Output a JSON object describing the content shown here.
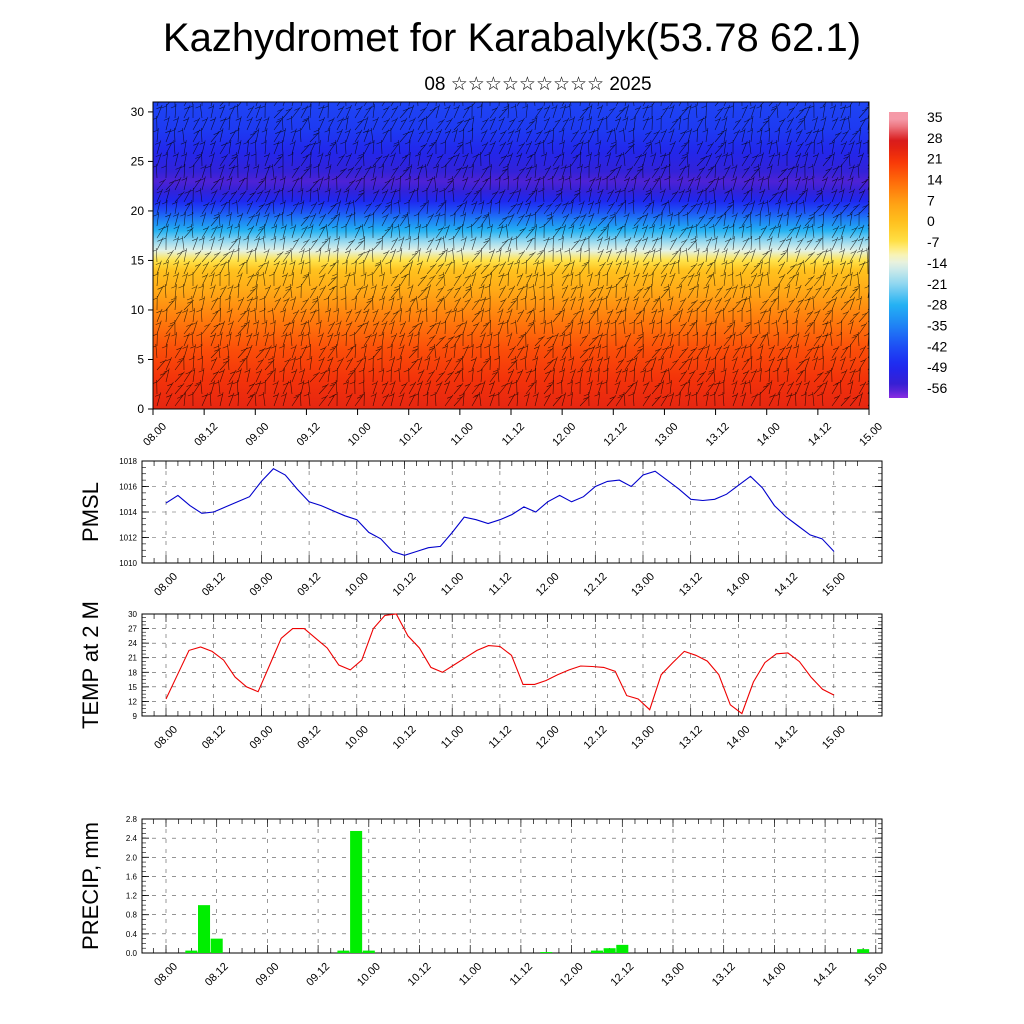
{
  "header": {
    "title": "Kazhydromet for Karabalyk(53.78 62.1)",
    "subtitle": "08 ☆☆☆☆☆☆☆☆☆ 2025"
  },
  "time_ticks": [
    "08.00",
    "08.12",
    "09.00",
    "09.12",
    "10.00",
    "10.12",
    "11.00",
    "11.12",
    "12.00",
    "12.12",
    "13.00",
    "13.12",
    "14.00",
    "14.12",
    "15.00"
  ],
  "chart_data": [
    {
      "id": "cross-section",
      "type": "heatmap",
      "x_categories": [
        "08.00",
        "08.12",
        "09.00",
        "09.12",
        "10.00",
        "10.12",
        "11.00",
        "11.12",
        "12.00",
        "12.12",
        "13.00",
        "13.12",
        "14.00",
        "14.12",
        "15.00"
      ],
      "y_ticks": [
        "0",
        "5",
        "10",
        "15",
        "20",
        "25",
        "30"
      ],
      "ylim": [
        0,
        31
      ],
      "colorbar": {
        "labels": [
          "35",
          "28",
          "21",
          "14",
          "7",
          "0",
          "-7",
          "-14",
          "-21",
          "-28",
          "-35",
          "-42",
          "-49",
          "-56"
        ],
        "range": [
          -60,
          38
        ]
      },
      "temperature_profile": {
        "levels": [
          0,
          3,
          6,
          9,
          12,
          14,
          15,
          16,
          17,
          18,
          19,
          20,
          21,
          22,
          23,
          24,
          26,
          28,
          31
        ],
        "values": [
          25,
          22,
          18,
          12,
          5,
          0,
          -7,
          -14,
          -21,
          -28,
          -35,
          -42,
          -49,
          -54,
          -57,
          -54,
          -50,
          -46,
          -44
        ]
      },
      "overlay": "wind barbs"
    },
    {
      "id": "pmsl",
      "type": "line",
      "ylabel": "PMSL",
      "y_ticks": [
        "1018",
        "1016",
        "1014",
        "1012",
        "1010"
      ],
      "ylim": [
        1010,
        1018
      ],
      "color": "#0000cc",
      "values": [
        1014.7,
        1015.3,
        1014.5,
        1013.9,
        1014.0,
        1014.4,
        1014.8,
        1015.2,
        1016.4,
        1017.4,
        1016.9,
        1015.8,
        1014.8,
        1014.5,
        1014.1,
        1013.7,
        1013.4,
        1012.4,
        1011.9,
        1010.9,
        1010.6,
        1010.9,
        1011.2,
        1011.3,
        1012.4,
        1013.6,
        1013.4,
        1013.1,
        1013.4,
        1013.8,
        1014.4,
        1014.0,
        1014.8,
        1015.3,
        1014.8,
        1015.2,
        1016.0,
        1016.4,
        1016.5,
        1016.0,
        1016.9,
        1017.2,
        1016.5,
        1015.8,
        1015.0,
        1014.9,
        1015.0,
        1015.4,
        1016.1,
        1016.8,
        1015.9,
        1014.5,
        1013.6,
        1012.9,
        1012.2,
        1011.9,
        1010.9
      ]
    },
    {
      "id": "temp2m",
      "type": "line",
      "ylabel": "TEMP at 2 M",
      "y_ticks": [
        "30",
        "27",
        "24",
        "21",
        "18",
        "15",
        "12",
        "9"
      ],
      "ylim": [
        9,
        30
      ],
      "color": "#ee0000",
      "values": [
        12.5,
        17.5,
        22.5,
        23.2,
        22.3,
        20.5,
        17.0,
        15.0,
        14.0,
        19.5,
        25.0,
        27.0,
        27.0,
        25.0,
        23.0,
        19.5,
        18.5,
        20.5,
        27.0,
        29.7,
        30.0,
        25.5,
        23.0,
        19.0,
        18.0,
        19.5,
        21.0,
        22.5,
        23.5,
        23.3,
        21.5,
        15.5,
        15.5,
        16.3,
        17.5,
        18.5,
        19.3,
        19.2,
        19.0,
        18.2,
        13.2,
        12.5,
        10.3,
        17.5,
        20.0,
        22.3,
        21.5,
        20.3,
        17.5,
        11.3,
        9.5,
        16.0,
        20.0,
        21.8,
        22.0,
        20.2,
        17.0,
        14.5,
        13.3
      ]
    },
    {
      "id": "precip",
      "type": "bar",
      "ylabel": "PRECIP, mm",
      "y_ticks": [
        "2.8",
        "2.4",
        "2.0",
        "1.6",
        "1.2",
        "0.8",
        "0.4",
        "0.0"
      ],
      "ylim": [
        0,
        2.8
      ],
      "color": "#00ee00",
      "bars": [
        {
          "x": 6,
          "value": 0.05
        },
        {
          "x": 9,
          "value": 1.0
        },
        {
          "x": 12,
          "value": 0.3
        },
        {
          "x": 42,
          "value": 0.05
        },
        {
          "x": 45,
          "value": 2.55
        },
        {
          "x": 48,
          "value": 0.05
        },
        {
          "x": 90,
          "value": 0.02
        },
        {
          "x": 102,
          "value": 0.05
        },
        {
          "x": 105,
          "value": 0.1
        },
        {
          "x": 108,
          "value": 0.17
        },
        {
          "x": 165,
          "value": 0.08
        }
      ]
    }
  ]
}
